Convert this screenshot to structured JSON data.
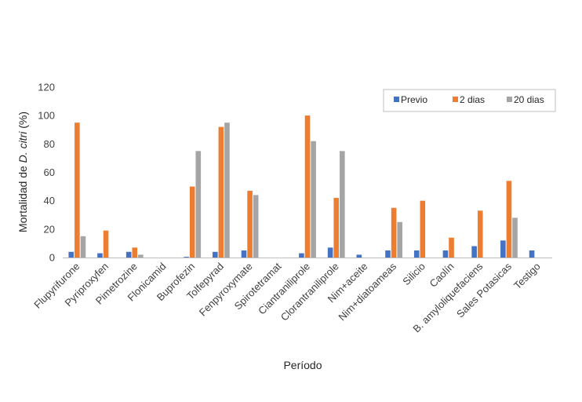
{
  "chart_data": {
    "type": "bar",
    "title": "",
    "xlabel": "Período",
    "ylabel": {
      "prefix": "Mortalidad de ",
      "italic": "D. citri",
      "suffix": " (%)"
    },
    "ylim": [
      0,
      120
    ],
    "yticks": [
      "0",
      "20",
      "40",
      "60",
      "80",
      "100",
      "120"
    ],
    "grid": false,
    "legend_position": "top-right",
    "categories": [
      "Flupyrifurone",
      "Pyriproxyfen",
      "Pimetrozine",
      "Flonicamid",
      "Buprofezin",
      "Tolfepyrad",
      "Fenpyroxymate",
      "Spirotetramat",
      "Ciantraniliprole",
      "Clorantraniliprole",
      "Nim+aceite",
      "Nim+diatoameas",
      "Silicio",
      "Caolín",
      "B. amyloliquefaciens",
      "Sales Potasicas",
      "Testigo"
    ],
    "series": [
      {
        "name": "Previo",
        "color": "#4472C4",
        "values": [
          4,
          3,
          4,
          0,
          0.5,
          4,
          5,
          0,
          3,
          7,
          2,
          5,
          5,
          5,
          8,
          12,
          5
        ]
      },
      {
        "name": "2 dias",
        "color": "#ED7D31",
        "values": [
          95,
          19,
          7,
          0,
          50,
          92,
          47,
          0,
          100,
          42,
          0,
          35,
          40,
          14,
          33,
          54,
          0
        ]
      },
      {
        "name": "20 dias",
        "color": "#A5A5A5",
        "values": [
          15,
          0,
          2,
          0,
          75,
          95,
          44,
          0,
          82,
          75,
          0,
          25,
          0,
          0,
          0,
          28,
          0
        ]
      }
    ]
  }
}
